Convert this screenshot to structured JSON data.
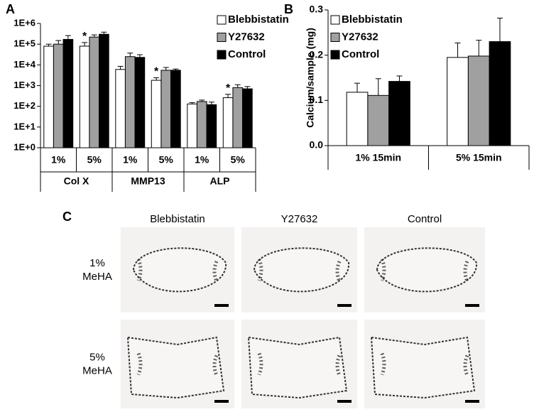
{
  "chart_data": [
    {
      "type": "bar",
      "panel_label": "A",
      "log_scale": true,
      "categories": [
        "1%",
        "5%",
        "1%",
        "5%",
        "1%",
        "5%"
      ],
      "groups": [
        "Col X",
        "MMP13",
        "ALP"
      ],
      "ylim": [
        1,
        1000000
      ],
      "yticks": [
        {
          "value": 1,
          "label": "1E+0"
        },
        {
          "value": 10,
          "label": "1E+1"
        },
        {
          "value": 100,
          "label": "1E+2"
        },
        {
          "value": 1000,
          "label": "1E+3"
        },
        {
          "value": 10000,
          "label": "1E+4"
        },
        {
          "value": 100000,
          "label": "1E+5"
        },
        {
          "value": 1000000,
          "label": "1E+6"
        }
      ],
      "series": [
        {
          "name": "Blebbistatin",
          "color": "#ffffff",
          "values": [
            80000,
            80000,
            6000,
            1800,
            130,
            260
          ],
          "errors": [
            20000,
            40000,
            2500,
            600,
            20,
            120
          ],
          "annotations": [
            null,
            "*",
            null,
            "*",
            null,
            "*"
          ]
        },
        {
          "name": "Y27632",
          "color": "#a0a0a0",
          "values": [
            100000,
            220000,
            25000,
            5500,
            170,
            800
          ],
          "errors": [
            50000,
            60000,
            12000,
            2000,
            30,
            300
          ]
        },
        {
          "name": "Control",
          "color": "#000000",
          "values": [
            170000,
            300000,
            23000,
            5500,
            120,
            700
          ],
          "errors": [
            90000,
            80000,
            8000,
            800,
            40,
            200
          ]
        }
      ]
    },
    {
      "type": "bar",
      "panel_label": "B",
      "y_label": "Calcium/sample (mg)",
      "categories": [
        "1% 15min",
        "5% 15min"
      ],
      "ylim": [
        0,
        0.3
      ],
      "yticks": [
        {
          "value": 0,
          "label": "0.0"
        },
        0.1,
        0.2,
        0.3
      ],
      "series": [
        {
          "name": "Blebbistatin",
          "color": "#ffffff",
          "values": [
            0.118,
            0.195
          ],
          "errors": [
            0.02,
            0.032
          ]
        },
        {
          "name": "Y27632",
          "color": "#a0a0a0",
          "values": [
            0.111,
            0.198
          ],
          "errors": [
            0.037,
            0.035
          ]
        },
        {
          "name": "Control",
          "color": "#000000",
          "values": [
            0.142,
            0.23
          ],
          "errors": [
            0.012,
            0.052
          ]
        }
      ]
    }
  ],
  "panel_c": {
    "label": "C",
    "columns": [
      "Blebbistatin",
      "Y27632",
      "Control"
    ],
    "rows": [
      [
        "1%",
        "MeHA"
      ],
      [
        "5%",
        "MeHA"
      ]
    ]
  }
}
